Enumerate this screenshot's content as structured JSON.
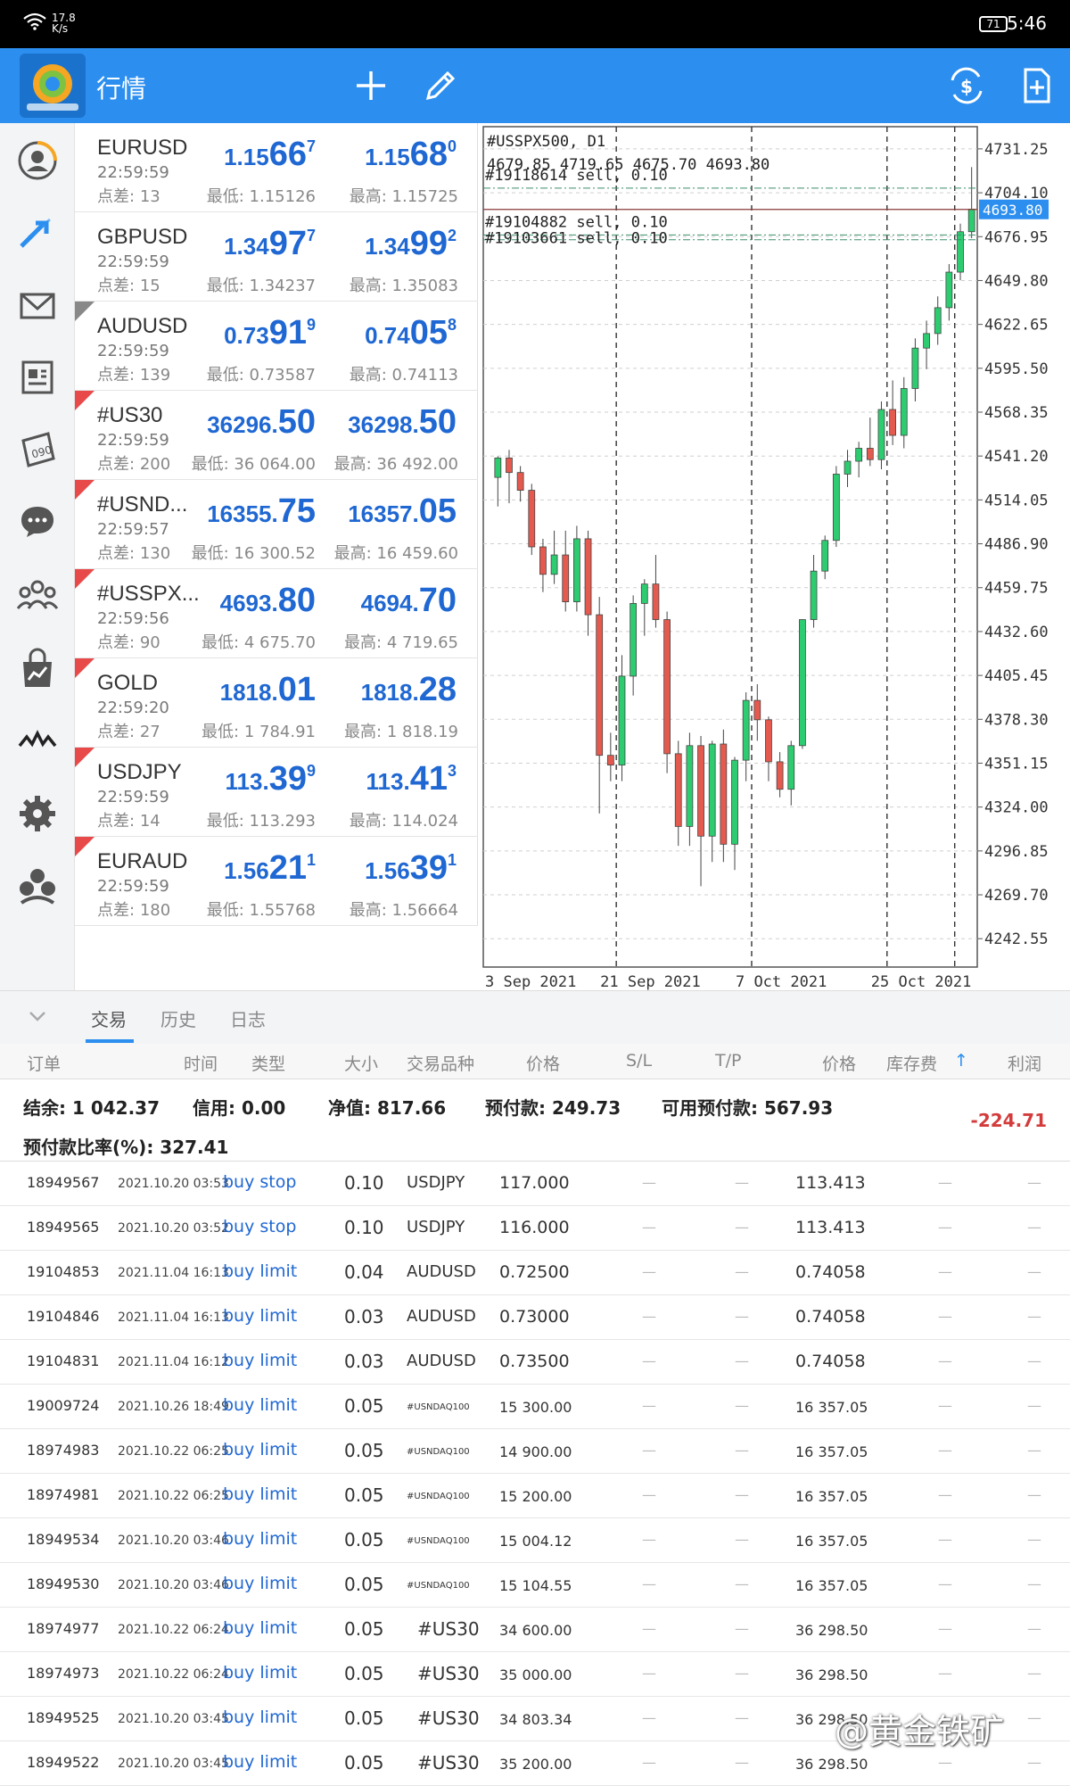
{
  "status": {
    "speed_top": "17.8",
    "speed_unit": "K/s",
    "battery": "71",
    "time": "5:46"
  },
  "appbar": {
    "title": "行情",
    "add_icon": "plus-icon",
    "edit_icon": "pencil-icon",
    "trade_icon": "currency-exchange-icon",
    "new_doc_icon": "new-document-icon"
  },
  "rail": [
    "account-icon",
    "trade-arrows-icon",
    "mail-icon",
    "news-icon",
    "calendar-icon",
    "chat-icon",
    "community-icon",
    "market-icon",
    "signals-icon",
    "settings-icon",
    "traders-icon"
  ],
  "quotes": [
    {
      "sym": "EURUSD",
      "time": "22:59:59",
      "spread_label": "点差:",
      "spread": "13",
      "bid_pre": "1.15",
      "bid_big": "66",
      "bid_sup": "7",
      "ask_pre": "1.15",
      "ask_big": "68",
      "ask_sup": "0",
      "low": "最低: 1.15126",
      "high": "最高: 1.15725",
      "flag": "none"
    },
    {
      "sym": "GBPUSD",
      "time": "22:59:59",
      "spread_label": "点差:",
      "spread": "15",
      "bid_pre": "1.34",
      "bid_big": "97",
      "bid_sup": "7",
      "ask_pre": "1.34",
      "ask_big": "99",
      "ask_sup": "2",
      "low": "最低: 1.34237",
      "high": "最高: 1.35083",
      "flag": "none"
    },
    {
      "sym": "AUDUSD",
      "time": "22:59:59",
      "spread_label": "点差:",
      "spread": "139",
      "bid_pre": "0.73",
      "bid_big": "91",
      "bid_sup": "9",
      "ask_pre": "0.74",
      "ask_big": "05",
      "ask_sup": "8",
      "low": "最低: 0.73587",
      "high": "最高: 0.74113",
      "flag": "grey"
    },
    {
      "sym": "#US30",
      "time": "22:59:59",
      "spread_label": "点差:",
      "spread": "200",
      "bid_pre": "36296.",
      "bid_big": "50",
      "bid_sup": "",
      "ask_pre": "36298.",
      "ask_big": "50",
      "ask_sup": "",
      "low": "最低: 36 064.00",
      "high": "最高: 36 492.00",
      "flag": "red"
    },
    {
      "sym": "#USND...",
      "time": "22:59:57",
      "spread_label": "点差:",
      "spread": "130",
      "bid_pre": "16355.",
      "bid_big": "75",
      "bid_sup": "",
      "ask_pre": "16357.",
      "ask_big": "05",
      "ask_sup": "",
      "low": "最低: 16 300.52",
      "high": "最高: 16 459.60",
      "flag": "red"
    },
    {
      "sym": "#USSPX...",
      "time": "22:59:56",
      "spread_label": "点差:",
      "spread": "90",
      "bid_pre": "4693.",
      "bid_big": "80",
      "bid_sup": "",
      "ask_pre": "4694.",
      "ask_big": "70",
      "ask_sup": "",
      "low": "最低: 4 675.70",
      "high": "最高: 4 719.65",
      "flag": "red"
    },
    {
      "sym": "GOLD",
      "time": "22:59:20",
      "spread_label": "点差:",
      "spread": "27",
      "bid_pre": "1818.",
      "bid_big": "01",
      "bid_sup": "",
      "ask_pre": "1818.",
      "ask_big": "28",
      "ask_sup": "",
      "low": "最低: 1 784.91",
      "high": "最高: 1 818.19",
      "flag": "red"
    },
    {
      "sym": "USDJPY",
      "time": "22:59:59",
      "spread_label": "点差:",
      "spread": "14",
      "bid_pre": "113.",
      "bid_big": "39",
      "bid_sup": "9",
      "ask_pre": "113.",
      "ask_big": "41",
      "ask_sup": "3",
      "low": "最低: 113.293",
      "high": "最高: 114.024",
      "flag": "red"
    },
    {
      "sym": "EURAUD",
      "time": "22:59:59",
      "spread_label": "点差:",
      "spread": "180",
      "bid_pre": "1.56",
      "bid_big": "21",
      "bid_sup": "1",
      "ask_pre": "1.56",
      "ask_big": "39",
      "ask_sup": "1",
      "low": "最低: 1.55768",
      "high": "最高: 1.56664",
      "flag": "red"
    }
  ],
  "chart_data": {
    "type": "candlestick",
    "title": "#USSPX500, D1",
    "ohlc_label": "4679.85 4719.65 4675.70 4693.80",
    "current_price": "4693.80",
    "order_lines": [
      "#19118614 sell, 0.10",
      "#19104882 sell, 0.10",
      "#19103661 sell, 0.10"
    ],
    "y_ticks": [
      "4731.25",
      "4704.10",
      "4676.95",
      "4649.80",
      "4622.65",
      "4595.50",
      "4568.35",
      "4541.20",
      "4514.05",
      "4486.90",
      "4459.75",
      "4432.60",
      "4405.45",
      "4378.30",
      "4351.15",
      "4324.00",
      "4296.85",
      "4269.70",
      "4242.55"
    ],
    "x_ticks": [
      "3 Sep 2021",
      "21 Sep 2021",
      "7 Oct 2021",
      "25 Oct 2021"
    ],
    "ylim": [
      4225,
      4745
    ],
    "candles": [
      [
        4528,
        4541,
        4510,
        4540
      ],
      [
        4540,
        4545,
        4512,
        4531
      ],
      [
        4531,
        4535,
        4513,
        4520
      ],
      [
        4520,
        4524,
        4480,
        4485
      ],
      [
        4485,
        4490,
        4457,
        4468
      ],
      [
        4468,
        4495,
        4462,
        4480
      ],
      [
        4480,
        4495,
        4445,
        4451
      ],
      [
        4451,
        4498,
        4445,
        4490
      ],
      [
        4490,
        4495,
        4430,
        4443
      ],
      [
        4443,
        4454,
        4320,
        4356
      ],
      [
        4356,
        4370,
        4340,
        4350
      ],
      [
        4350,
        4418,
        4340,
        4405
      ],
      [
        4405,
        4455,
        4393,
        4450
      ],
      [
        4450,
        4465,
        4430,
        4462
      ],
      [
        4462,
        4480,
        4435,
        4440
      ],
      [
        4440,
        4445,
        4345,
        4357
      ],
      [
        4357,
        4365,
        4300,
        4312
      ],
      [
        4312,
        4370,
        4300,
        4362
      ],
      [
        4362,
        4368,
        4275,
        4306
      ],
      [
        4306,
        4365,
        4290,
        4363
      ],
      [
        4363,
        4372,
        4290,
        4301
      ],
      [
        4301,
        4355,
        4285,
        4353
      ],
      [
        4353,
        4395,
        4340,
        4390
      ],
      [
        4390,
        4400,
        4365,
        4378
      ],
      [
        4378,
        4380,
        4340,
        4352
      ],
      [
        4352,
        4358,
        4330,
        4335
      ],
      [
        4335,
        4365,
        4325,
        4362
      ],
      [
        4362,
        4440,
        4360,
        4440
      ],
      [
        4440,
        4480,
        4435,
        4470
      ],
      [
        4470,
        4492,
        4465,
        4489
      ],
      [
        4489,
        4535,
        4485,
        4530
      ],
      [
        4530,
        4545,
        4522,
        4538
      ],
      [
        4538,
        4550,
        4528,
        4546
      ],
      [
        4546,
        4565,
        4535,
        4539
      ],
      [
        4539,
        4575,
        4533,
        4570
      ],
      [
        4570,
        4588,
        4548,
        4554
      ],
      [
        4554,
        4590,
        4546,
        4583
      ],
      [
        4583,
        4614,
        4575,
        4608
      ],
      [
        4608,
        4625,
        4595,
        4617
      ],
      [
        4617,
        4640,
        4610,
        4633
      ],
      [
        4633,
        4660,
        4625,
        4655
      ],
      [
        4655,
        4685,
        4650,
        4680
      ],
      [
        4680,
        4720,
        4676,
        4694
      ]
    ]
  },
  "tabs": {
    "trade": "交易",
    "history": "历史",
    "journal": "日志"
  },
  "columns": [
    "订单",
    "时间",
    "类型",
    "大小",
    "交易品种",
    "价格",
    "S/L",
    "T/P",
    "价格",
    "库存费",
    "利润"
  ],
  "summary": {
    "balance": "结余: 1 042.37",
    "credit": "信用: 0.00",
    "equity": "净值: 817.66",
    "margin": "预付款: 249.73",
    "free_margin": "可用预付款: 567.93",
    "margin_level": "预付款比率(%): 327.41",
    "profit": "-224.71"
  },
  "orders": [
    {
      "id": "18949567",
      "date": "2021.10.20 03:53",
      "type": "buy stop",
      "vol": "0.10",
      "sym": "USDJPY",
      "price": "117.000",
      "sl": "—",
      "tp": "—",
      "cur": "113.413",
      "swap": "—",
      "profit": "—",
      "style": "normal"
    },
    {
      "id": "18949565",
      "date": "2021.10.20 03:52",
      "type": "buy stop",
      "vol": "0.10",
      "sym": "USDJPY",
      "price": "116.000",
      "sl": "—",
      "tp": "—",
      "cur": "113.413",
      "swap": "—",
      "profit": "—",
      "style": "normal"
    },
    {
      "id": "19104853",
      "date": "2021.11.04 16:13",
      "type": "buy limit",
      "vol": "0.04",
      "sym": "AUDUSD",
      "price": "0.72500",
      "sl": "—",
      "tp": "—",
      "cur": "0.74058",
      "swap": "—",
      "profit": "—",
      "style": "normal"
    },
    {
      "id": "19104846",
      "date": "2021.11.04 16:13",
      "type": "buy limit",
      "vol": "0.03",
      "sym": "AUDUSD",
      "price": "0.73000",
      "sl": "—",
      "tp": "—",
      "cur": "0.74058",
      "swap": "—",
      "profit": "—",
      "style": "normal"
    },
    {
      "id": "19104831",
      "date": "2021.11.04 16:12",
      "type": "buy limit",
      "vol": "0.03",
      "sym": "AUDUSD",
      "price": "0.73500",
      "sl": "—",
      "tp": "—",
      "cur": "0.74058",
      "swap": "—",
      "profit": "—",
      "style": "normal"
    },
    {
      "id": "19009724",
      "date": "2021.10.26 18:49",
      "type": "buy limit",
      "vol": "0.05",
      "sym": "#USNDAQ100",
      "price": "15 300.00",
      "sl": "—",
      "tp": "—",
      "cur": "16 357.05",
      "swap": "—",
      "profit": "—",
      "style": "small"
    },
    {
      "id": "18974983",
      "date": "2021.10.22 06:25",
      "type": "buy limit",
      "vol": "0.05",
      "sym": "#USNDAQ100",
      "price": "14 900.00",
      "sl": "—",
      "tp": "—",
      "cur": "16 357.05",
      "swap": "—",
      "profit": "—",
      "style": "small"
    },
    {
      "id": "18974981",
      "date": "2021.10.22 06:25",
      "type": "buy limit",
      "vol": "0.05",
      "sym": "#USNDAQ100",
      "price": "15 200.00",
      "sl": "—",
      "tp": "—",
      "cur": "16 357.05",
      "swap": "—",
      "profit": "—",
      "style": "small"
    },
    {
      "id": "18949534",
      "date": "2021.10.20 03:46",
      "type": "buy limit",
      "vol": "0.05",
      "sym": "#USNDAQ100",
      "price": "15 004.12",
      "sl": "—",
      "tp": "—",
      "cur": "16 357.05",
      "swap": "—",
      "profit": "—",
      "style": "small"
    },
    {
      "id": "18949530",
      "date": "2021.10.20 03:46",
      "type": "buy limit",
      "vol": "0.05",
      "sym": "#USNDAQ100",
      "price": "15 104.55",
      "sl": "—",
      "tp": "—",
      "cur": "16 357.05",
      "swap": "—",
      "profit": "—",
      "style": "small"
    },
    {
      "id": "18974977",
      "date": "2021.10.22 06:24",
      "type": "buy limit",
      "vol": "0.05",
      "sym": "#US30",
      "price": "34 600.00",
      "sl": "—",
      "tp": "—",
      "cur": "36 298.50",
      "swap": "—",
      "profit": "—",
      "style": "us30"
    },
    {
      "id": "18974973",
      "date": "2021.10.22 06:24",
      "type": "buy limit",
      "vol": "0.05",
      "sym": "#US30",
      "price": "35 000.00",
      "sl": "—",
      "tp": "—",
      "cur": "36 298.50",
      "swap": "—",
      "profit": "—",
      "style": "us30"
    },
    {
      "id": "18949525",
      "date": "2021.10.20 03:45",
      "type": "buy limit",
      "vol": "0.05",
      "sym": "#US30",
      "price": "34 803.34",
      "sl": "—",
      "tp": "—",
      "cur": "36 298.50",
      "swap": "—",
      "profit": "—",
      "style": "us30"
    },
    {
      "id": "18949522",
      "date": "2021.10.20 03:45",
      "type": "buy limit",
      "vol": "0.05",
      "sym": "#US30",
      "price": "35 200.00",
      "sl": "—",
      "tp": "—",
      "cur": "36 298.50",
      "swap": "—",
      "profit": "—",
      "style": "us30"
    }
  ],
  "watermark": "@黄金铁矿"
}
